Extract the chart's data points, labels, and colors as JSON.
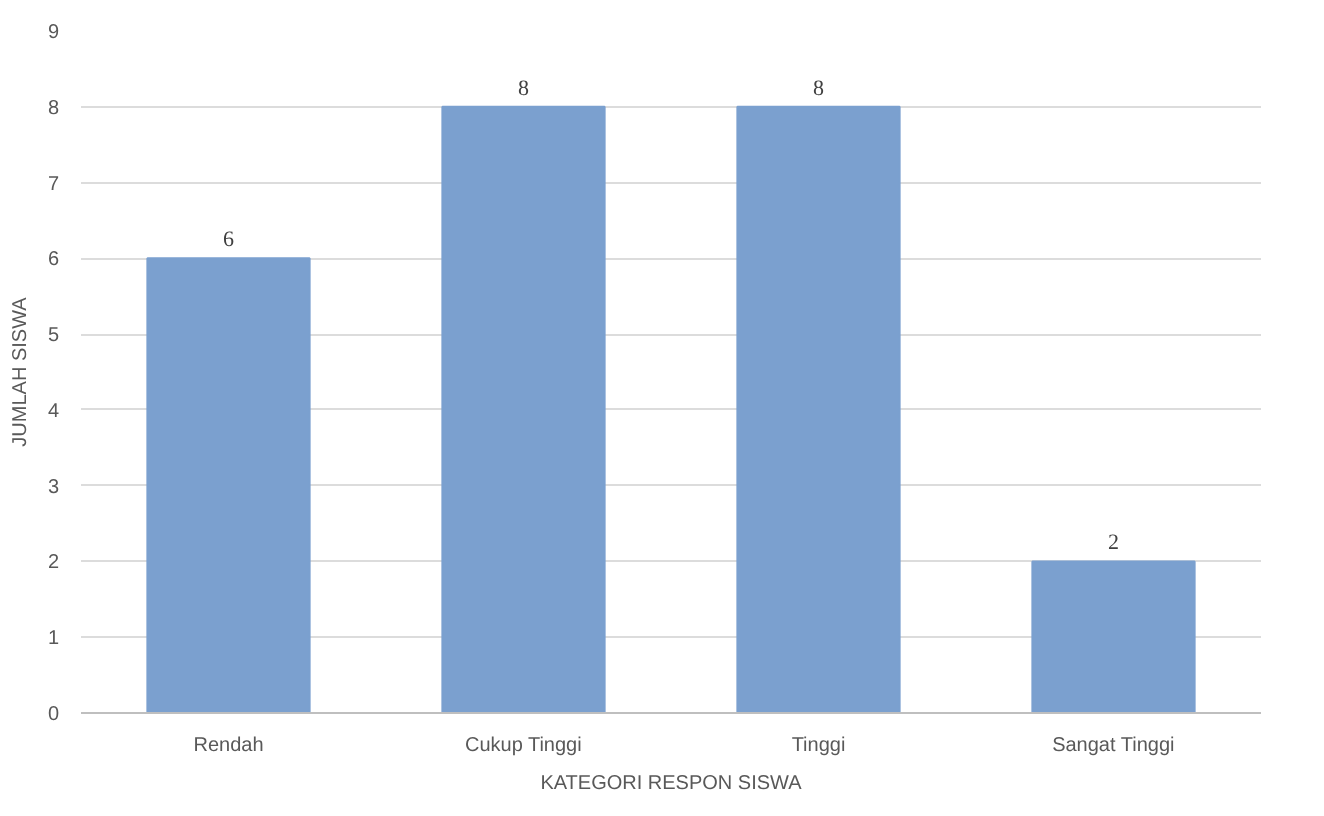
{
  "chart_data": {
    "type": "bar",
    "xlabel": "KATEGORI RESPON SISWA",
    "ylabel": "JUMLAH SISWA",
    "categories": [
      "Rendah",
      "Cukup Tinggi",
      "Tinggi",
      "Sangat Tinggi"
    ],
    "values": [
      6,
      8,
      8,
      2
    ],
    "color": "#7ba0cf",
    "ylim": [
      0,
      9
    ],
    "yticks": [
      0,
      1,
      2,
      3,
      4,
      5,
      6,
      7,
      8,
      9
    ],
    "grid": "y",
    "data_labels": true
  }
}
